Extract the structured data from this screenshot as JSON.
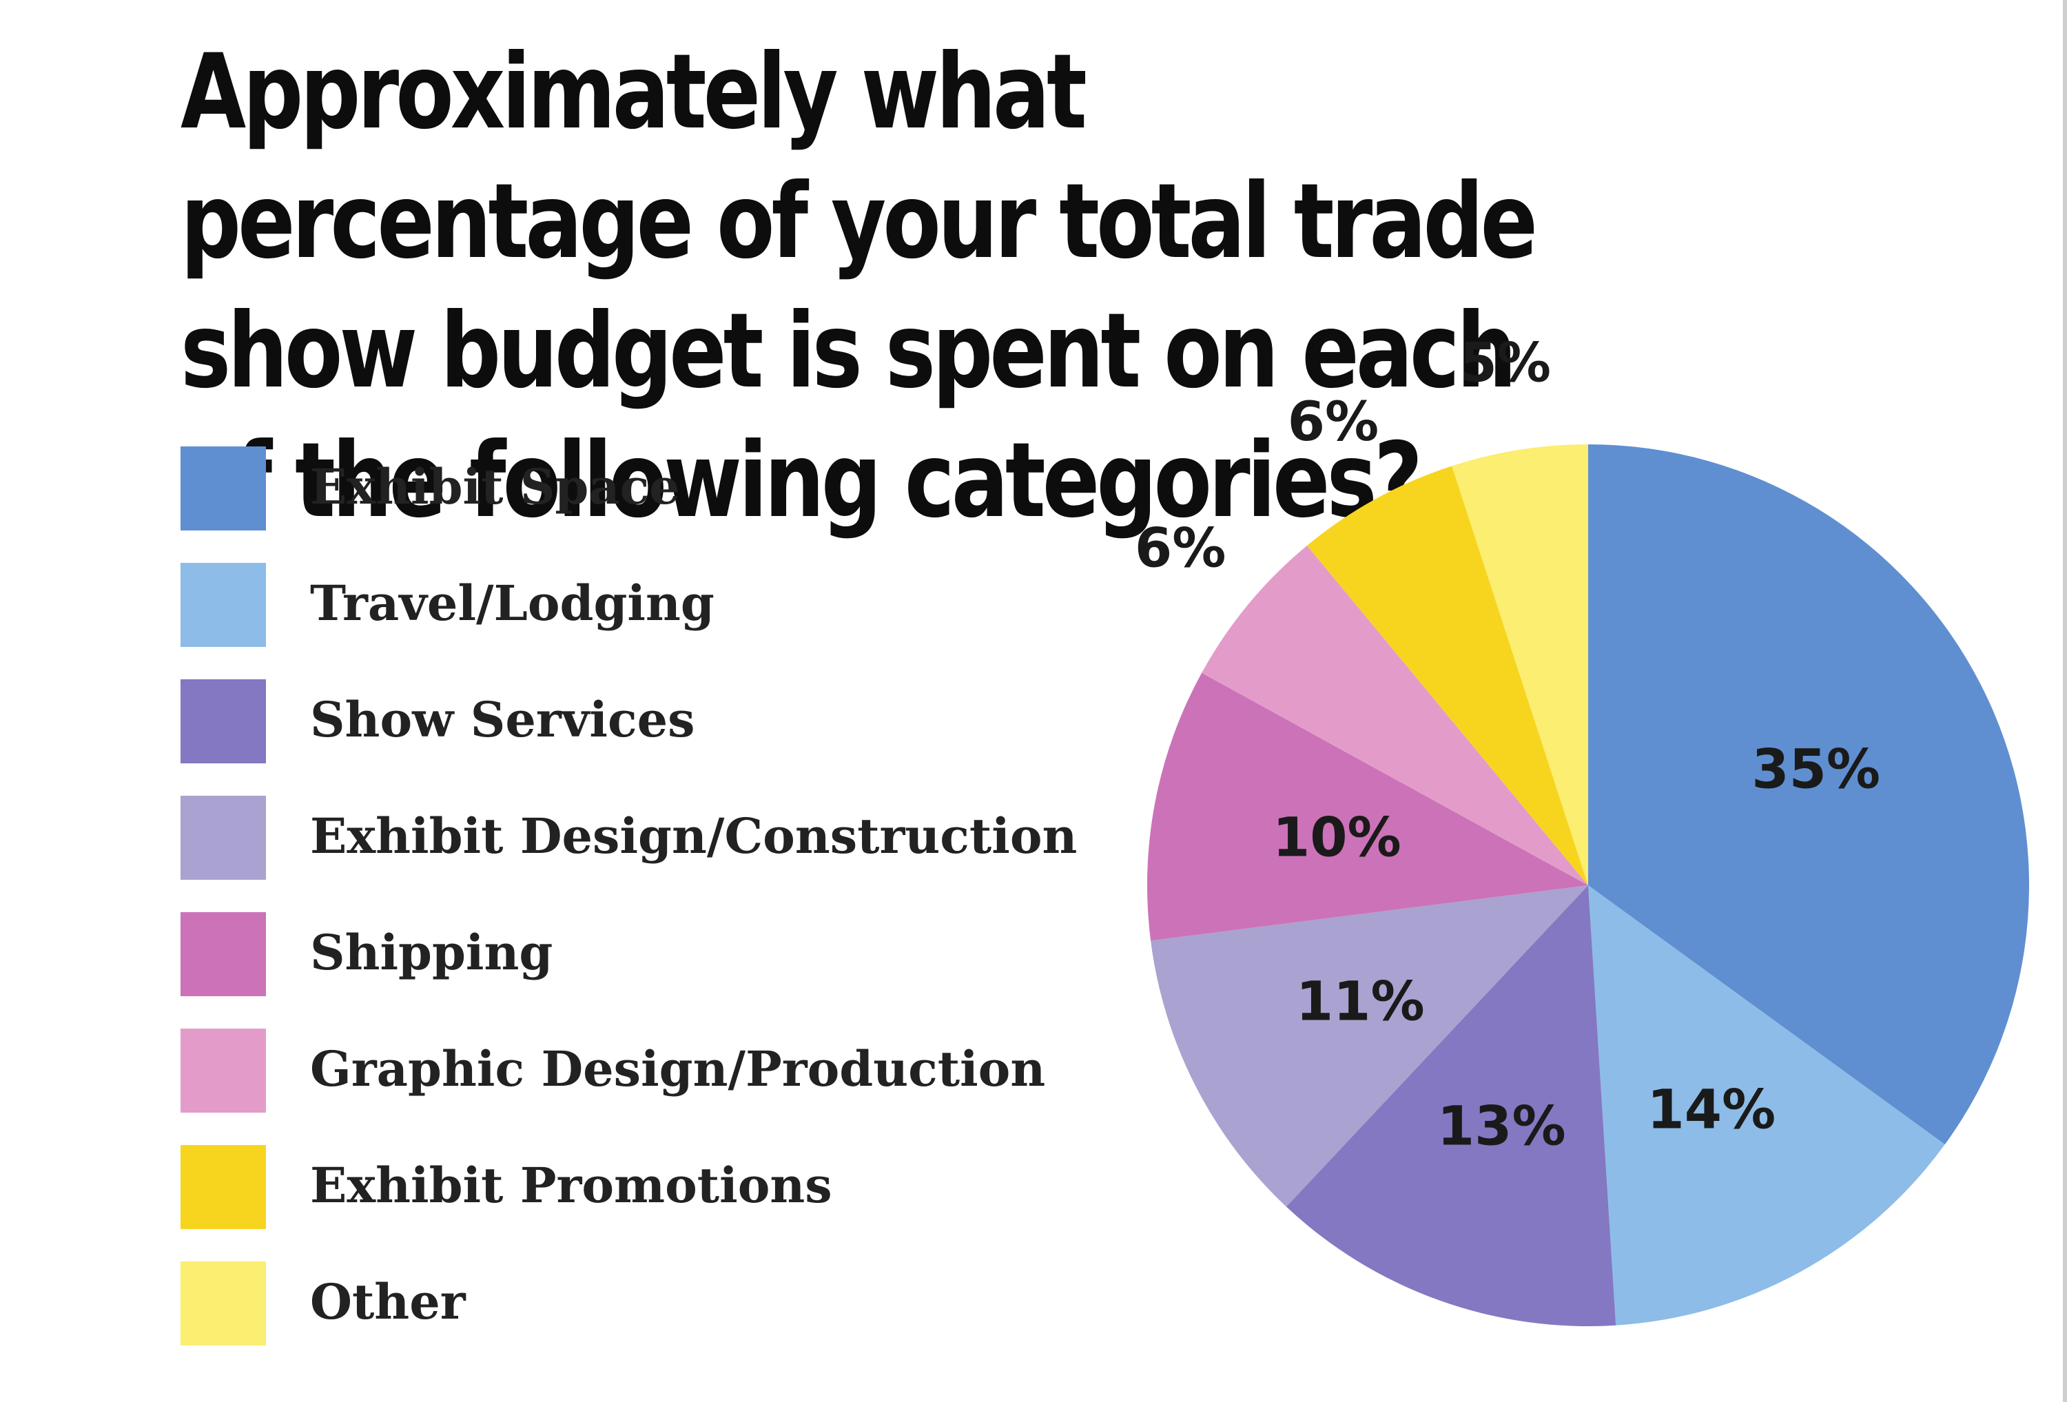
{
  "chart_data": {
    "type": "pie",
    "title": "Approximately what percentage of your total trade show budget is spent on each of the following categories?",
    "categories": [
      "Exhibit Space",
      "Travel/Lodging",
      "Show Services",
      "Exhibit Design/Construction",
      "Shipping",
      "Graphic Design/Production",
      "Exhibit Promotions",
      "Other"
    ],
    "values": [
      35,
      14,
      13,
      11,
      10,
      6,
      6,
      5
    ],
    "labels": [
      "35%",
      "14%",
      "13%",
      "11%",
      "10%",
      "6%",
      "6%",
      "5%"
    ],
    "colors": [
      "#5f8fd0",
      "#8dbce8",
      "#8478c2",
      "#aaa2d0",
      "#cc72b8",
      "#e39cc9",
      "#f7d51f",
      "#fbee70"
    ],
    "legend_position": "left",
    "start_angle": "top",
    "direction": "clockwise"
  }
}
